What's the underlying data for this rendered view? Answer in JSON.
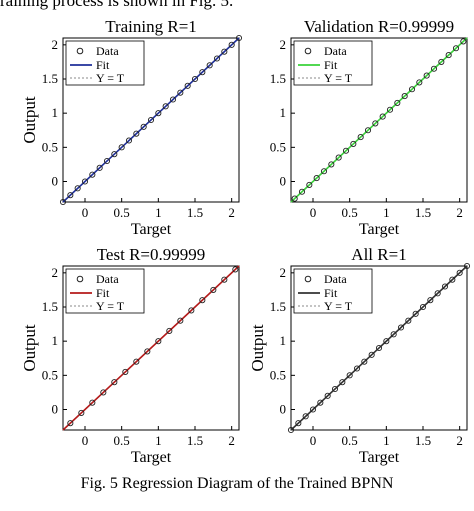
{
  "header_fragment": "raining process is shown in Fig. 5.",
  "figure_caption": "Fig. 5 Regression Diagram of the Trained BPNN",
  "colors": {
    "training": "#1f2f9a",
    "validation": "#3ad23a",
    "test": "#b41a1a",
    "all": "#333333"
  },
  "chart_data": [
    {
      "type": "scatter",
      "title": "Training R=1",
      "xlabel": "Target",
      "ylabel": "Output",
      "xlim": [
        -0.3,
        2.1
      ],
      "ylim": [
        -0.3,
        2.1
      ],
      "x_ticks": [
        "0",
        "0.5",
        "1",
        "1.5",
        "2"
      ],
      "y_ticks": [
        "0",
        "0.5",
        "1",
        "1.5",
        "2"
      ],
      "legend": [
        "Data",
        "Fit",
        "Y = T"
      ],
      "legend_position": "top-left",
      "fit": {
        "slope": 1,
        "intercept": 0
      },
      "points_x": [
        -0.3,
        -0.2,
        -0.1,
        0.0,
        0.1,
        0.2,
        0.3,
        0.4,
        0.5,
        0.6,
        0.7,
        0.8,
        0.9,
        1.0,
        1.1,
        1.2,
        1.3,
        1.4,
        1.5,
        1.6,
        1.7,
        1.8,
        1.9,
        2.0,
        2.1
      ],
      "points_y": [
        -0.3,
        -0.2,
        -0.1,
        0.0,
        0.1,
        0.2,
        0.3,
        0.4,
        0.5,
        0.6,
        0.7,
        0.8,
        0.9,
        1.0,
        1.1,
        1.2,
        1.3,
        1.4,
        1.5,
        1.6,
        1.7,
        1.8,
        1.9,
        2.0,
        2.1
      ],
      "color_key": "training"
    },
    {
      "type": "scatter",
      "title": "Validation R=0.99999",
      "xlabel": "Target",
      "ylabel": "",
      "xlim": [
        -0.3,
        2.1
      ],
      "ylim": [
        -0.3,
        2.1
      ],
      "x_ticks": [
        "0",
        "0.5",
        "1",
        "1.5",
        "2"
      ],
      "y_ticks": [
        "0",
        "0.5",
        "1",
        "1.5",
        "2"
      ],
      "legend": [
        "Data",
        "Fit",
        "Y = T"
      ],
      "legend_position": "top-left",
      "fit": {
        "slope": 1,
        "intercept": 0
      },
      "points_x": [
        -0.25,
        -0.15,
        -0.05,
        0.05,
        0.15,
        0.25,
        0.35,
        0.45,
        0.55,
        0.65,
        0.75,
        0.85,
        0.95,
        1.05,
        1.15,
        1.25,
        1.35,
        1.45,
        1.55,
        1.65,
        1.75,
        1.85,
        1.95,
        2.05
      ],
      "points_y": [
        -0.25,
        -0.15,
        -0.05,
        0.05,
        0.15,
        0.25,
        0.35,
        0.45,
        0.55,
        0.65,
        0.75,
        0.85,
        0.95,
        1.05,
        1.15,
        1.25,
        1.35,
        1.45,
        1.55,
        1.65,
        1.75,
        1.85,
        1.95,
        2.05
      ],
      "color_key": "validation"
    },
    {
      "type": "scatter",
      "title": "Test R=0.99999",
      "xlabel": "Target",
      "ylabel": "Output",
      "xlim": [
        -0.3,
        2.1
      ],
      "ylim": [
        -0.3,
        2.1
      ],
      "x_ticks": [
        "0",
        "0.5",
        "1",
        "1.5",
        "2"
      ],
      "y_ticks": [
        "0",
        "0.5",
        "1",
        "1.5",
        "2"
      ],
      "legend": [
        "Data",
        "Fit",
        "Y = T"
      ],
      "legend_position": "top-left",
      "fit": {
        "slope": 1,
        "intercept": 0
      },
      "points_x": [
        -0.2,
        -0.05,
        0.1,
        0.25,
        0.4,
        0.55,
        0.7,
        0.85,
        1.0,
        1.15,
        1.3,
        1.45,
        1.6,
        1.75,
        1.9,
        2.05
      ],
      "points_y": [
        -0.2,
        -0.05,
        0.1,
        0.25,
        0.4,
        0.55,
        0.7,
        0.85,
        1.0,
        1.15,
        1.3,
        1.45,
        1.6,
        1.75,
        1.9,
        2.05
      ],
      "color_key": "test"
    },
    {
      "type": "scatter",
      "title": "All R=1",
      "xlabel": "Target",
      "ylabel": "Output",
      "xlim": [
        -0.3,
        2.1
      ],
      "ylim": [
        -0.3,
        2.1
      ],
      "x_ticks": [
        "0",
        "0.5",
        "1",
        "1.5",
        "2"
      ],
      "y_ticks": [
        "0",
        "0.5",
        "1",
        "1.5",
        "2"
      ],
      "legend": [
        "Data",
        "Fit",
        "Y = T"
      ],
      "legend_position": "top-left",
      "fit": {
        "slope": 1,
        "intercept": 0
      },
      "points_x": [
        -0.3,
        -0.2,
        -0.1,
        0.0,
        0.1,
        0.2,
        0.3,
        0.4,
        0.5,
        0.6,
        0.7,
        0.8,
        0.9,
        1.0,
        1.1,
        1.2,
        1.3,
        1.4,
        1.5,
        1.6,
        1.7,
        1.8,
        1.9,
        2.0,
        2.1
      ],
      "points_y": [
        -0.3,
        -0.2,
        -0.1,
        0.0,
        0.1,
        0.2,
        0.3,
        0.4,
        0.5,
        0.6,
        0.7,
        0.8,
        0.9,
        1.0,
        1.1,
        1.2,
        1.3,
        1.4,
        1.5,
        1.6,
        1.7,
        1.8,
        1.9,
        2.0,
        2.1
      ],
      "color_key": "all"
    }
  ]
}
